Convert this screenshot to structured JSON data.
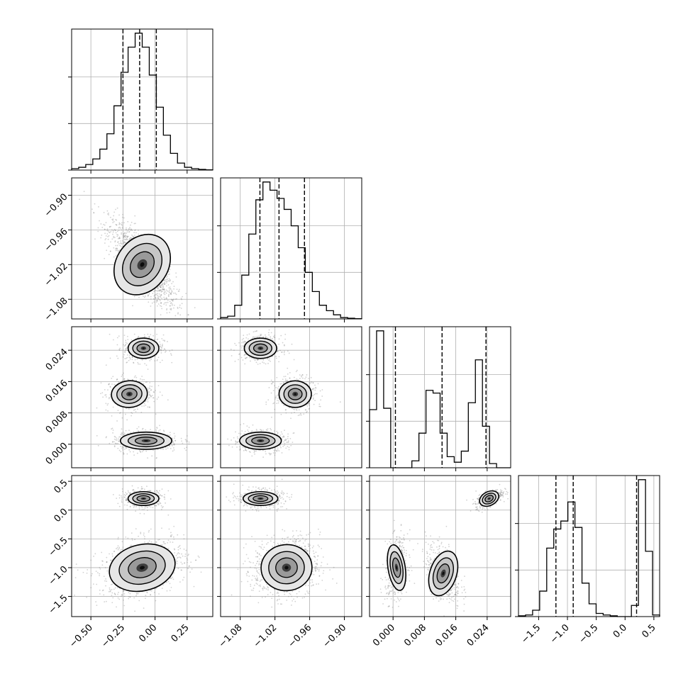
{
  "chart_data": {
    "type": "corner",
    "parameters": [
      {
        "label": "",
        "range": [
          -0.65,
          0.45
        ],
        "ticks": [
          -0.5,
          -0.25,
          0.0,
          0.25
        ],
        "tick_labels": [
          "−0.50",
          "−0.25",
          "0.00",
          "0.25"
        ],
        "quantiles": [
          -0.25,
          -0.12,
          0.01
        ]
      },
      {
        "label": "",
        "range": [
          -1.114,
          -0.87
        ],
        "ticks": [
          -1.08,
          -1.02,
          -0.96,
          -0.9
        ],
        "tick_labels": [
          "−1.08",
          "−1.02",
          "−0.96",
          "−0.90"
        ],
        "quantiles": [
          -1.046,
          -1.013,
          -0.969
        ]
      },
      {
        "label": "",
        "range": [
          -0.006,
          0.03
        ],
        "ticks": [
          0.0,
          0.008,
          0.016,
          0.024
        ],
        "tick_labels": [
          "0.000",
          "0.008",
          "0.016",
          "0.024"
        ],
        "quantiles": [
          0.0006,
          0.0125,
          0.0237
        ]
      },
      {
        "label": "",
        "range": [
          -1.85,
          0.6
        ],
        "ticks": [
          -1.5,
          -1.0,
          -0.5,
          0.0,
          0.5
        ],
        "tick_labels": [
          "−1.5",
          "−1.0",
          "−0.5",
          "0.0",
          "0.5"
        ],
        "quantiles": [
          -1.2,
          -0.9,
          0.2
        ]
      }
    ],
    "histograms": [
      [
        1,
        2,
        4,
        8,
        15,
        26,
        46,
        70,
        88,
        98,
        88,
        68,
        45,
        25,
        12,
        5,
        2,
        1,
        0.5,
        0.2
      ],
      [
        1,
        2,
        10,
        32,
        62,
        87,
        100,
        94,
        88,
        80,
        68,
        52,
        34,
        20,
        10,
        6,
        3,
        1,
        0.5,
        0.2
      ],
      [
        42,
        99,
        43,
        0,
        0,
        0,
        5,
        25,
        56,
        54,
        25,
        8,
        4,
        12,
        47,
        78,
        30,
        3,
        0,
        0
      ],
      [
        0.5,
        1,
        4,
        16,
        43,
        55,
        60,
        72,
        56,
        21,
        8,
        2,
        1,
        0.5,
        0,
        0,
        7,
        86,
        41,
        1
      ]
    ],
    "modes": [
      [
        {
          "x_mean": -0.1,
          "y_mean": -1.02,
          "x_sd": 0.1,
          "y_sd": 0.028,
          "corr": -0.8,
          "weight": 1
        }
      ],
      [
        {
          "x_mean": -0.09,
          "y_mean": 0.0245,
          "x_sd": 0.06,
          "y_sd": 0.0013,
          "corr": 0.0,
          "weight": 0.33
        },
        {
          "x_mean": -0.2,
          "y_mean": 0.0128,
          "x_sd": 0.07,
          "y_sd": 0.0017,
          "corr": 0.1,
          "weight": 0.33
        },
        {
          "x_mean": -0.07,
          "y_mean": 0.0009,
          "x_sd": 0.1,
          "y_sd": 0.0011,
          "corr": 0.0,
          "weight": 0.34
        }
      ],
      [
        {
          "x_mean": -1.045,
          "y_mean": 0.0245,
          "x_sd": 0.014,
          "y_sd": 0.0013,
          "corr": 0.0,
          "weight": 0.33
        },
        {
          "x_mean": -0.985,
          "y_mean": 0.0128,
          "x_sd": 0.014,
          "y_sd": 0.0017,
          "corr": 0.0,
          "weight": 0.33
        },
        {
          "x_mean": -1.045,
          "y_mean": 0.0009,
          "x_sd": 0.018,
          "y_sd": 0.0011,
          "corr": 0.0,
          "weight": 0.34
        }
      ],
      [
        {
          "x_mean": -0.09,
          "y_mean": 0.2,
          "x_sd": 0.06,
          "y_sd": 0.06,
          "corr": 0.0,
          "weight": 0.34
        },
        {
          "x_mean": -0.1,
          "y_mean": -1.0,
          "x_sd": 0.13,
          "y_sd": 0.2,
          "corr": 0.3,
          "weight": 0.66
        }
      ],
      [
        {
          "x_mean": -1.045,
          "y_mean": 0.2,
          "x_sd": 0.015,
          "y_sd": 0.06,
          "corr": 0.0,
          "weight": 0.34
        },
        {
          "x_mean": -1.0,
          "y_mean": -1.0,
          "x_sd": 0.022,
          "y_sd": 0.2,
          "corr": 0.1,
          "weight": 0.66
        }
      ],
      [
        {
          "x_mean": 0.0245,
          "y_mean": 0.2,
          "x_sd": 0.0013,
          "y_sd": 0.06,
          "corr": 0.6,
          "weight": 0.34
        },
        {
          "x_mean": 0.0128,
          "y_mean": -1.1,
          "x_sd": 0.0017,
          "y_sd": 0.2,
          "corr": -0.4,
          "weight": 0.33
        },
        {
          "x_mean": 0.0009,
          "y_mean": -1.0,
          "x_sd": 0.0011,
          "y_sd": 0.2,
          "corr": 0.2,
          "weight": 0.33
        }
      ]
    ],
    "grid": true,
    "colors": {
      "line": "#000000",
      "grid": "#b0b0b0",
      "points": "#7f7f7f"
    }
  }
}
